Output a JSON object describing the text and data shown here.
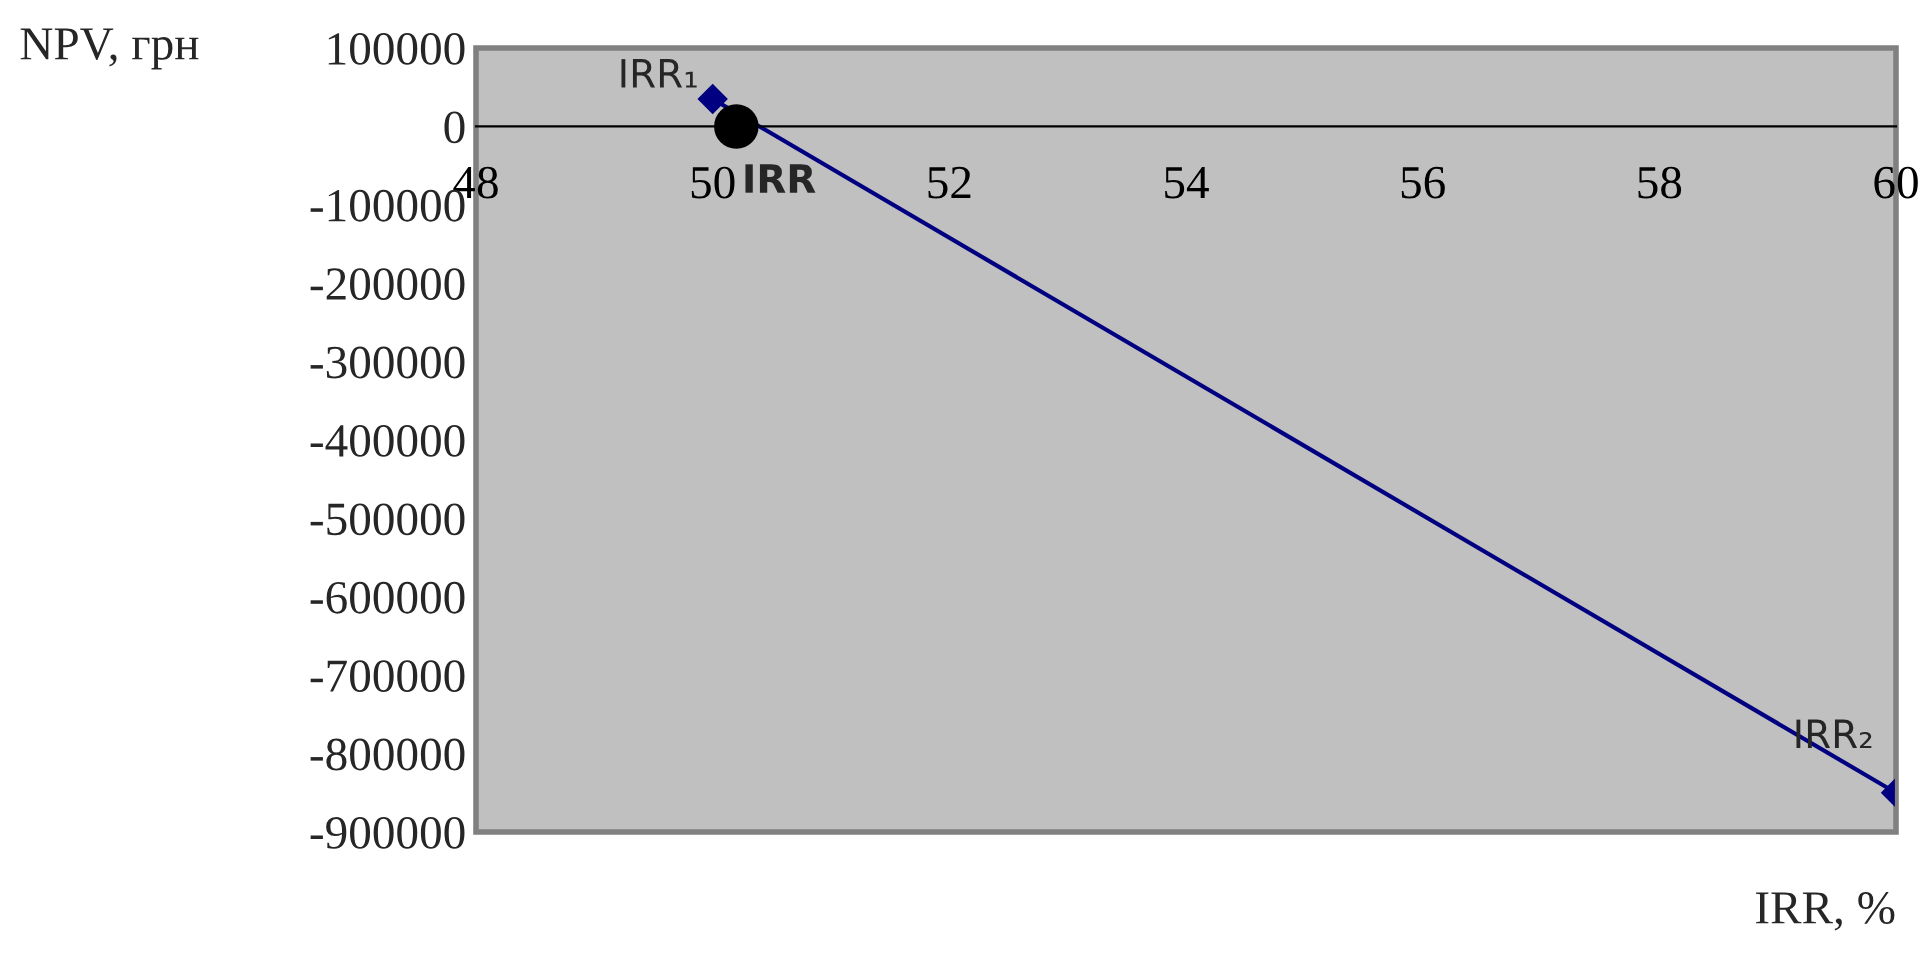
{
  "chart_data": {
    "type": "line",
    "xlabel": "IRR, %",
    "ylabel": "NPV, грн",
    "series": [
      {
        "color": "#000080",
        "x": [
          50,
          60
        ],
        "values": [
          35000,
          -850000
        ],
        "marker": "diamond"
      },
      {
        "type": "scatter",
        "color": "#000000",
        "x": [
          50.2
        ],
        "values": [
          0
        ],
        "marker": "circle"
      }
    ],
    "xlim": [
      48,
      60
    ],
    "xticks": [
      48,
      50,
      52,
      54,
      56,
      58,
      60
    ],
    "ylim": [
      -900000,
      100000
    ],
    "yticks": [
      -900000,
      -800000,
      -700000,
      -600000,
      -500000,
      -400000,
      -300000,
      -200000,
      -100000,
      0,
      100000
    ],
    "grid": false,
    "legend": false,
    "annotations": [
      {
        "text": "IRR₁",
        "x": 50,
        "y": 35000
      },
      {
        "text": "IRR₂",
        "x": 60,
        "y": -850000
      },
      {
        "text": "IRR",
        "x": 50.2,
        "y": 0
      }
    ]
  }
}
